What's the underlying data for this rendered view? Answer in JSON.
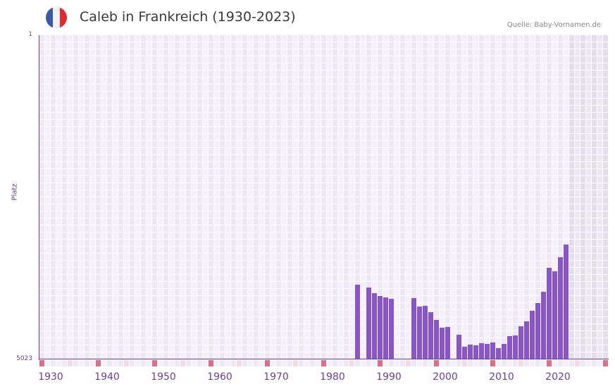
{
  "header": {
    "title": "Caleb in Frankreich (1930-2023)",
    "source": "Quelle: Baby-Vornamen.de",
    "flag": {
      "country": "France",
      "colors": [
        "#3a5aa8",
        "#f2f2f4",
        "#e42a2f"
      ]
    }
  },
  "colors": {
    "bar": "#8b55c7",
    "axis": "#6b3fa0",
    "grid_a": "#ece8f7",
    "grid_b": "#f3f0fb",
    "future_a": "#e3dff0",
    "future_b": "#ebe7f4",
    "decade_marker": "#e07080",
    "half_decade_marker": "#f5dbe3"
  },
  "chart_data": {
    "type": "bar",
    "title": "Caleb in Frankreich (1930-2023)",
    "xlabel": "",
    "ylabel": "Platz",
    "y_inverted": true,
    "ylim": [
      1,
      5023
    ],
    "y_ticks": [
      "1",
      "5023"
    ],
    "x_range": [
      1930,
      2030
    ],
    "x_tick_labels": [
      "1930",
      "1940",
      "1950",
      "1960",
      "1970",
      "1980",
      "1990",
      "2000",
      "2010",
      "2020"
    ],
    "grid": true,
    "legend": null,
    "future_shaded_from": 2024,
    "categories": [
      1986,
      1988,
      1989,
      1990,
      1991,
      1992,
      1996,
      1997,
      1998,
      1999,
      2000,
      2001,
      2002,
      2004,
      2005,
      2006,
      2007,
      2008,
      2009,
      2010,
      2011,
      2012,
      2013,
      2014,
      2015,
      2016,
      2017,
      2018,
      2019,
      2020,
      2021,
      2022,
      2023
    ],
    "values": [
      3866,
      3908,
      3996,
      4040,
      4061,
      4083,
      4072,
      4203,
      4192,
      4291,
      4411,
      4531,
      4520,
      4640,
      4826,
      4793,
      4804,
      4771,
      4782,
      4760,
      4848,
      4782,
      4662,
      4651,
      4509,
      4433,
      4269,
      4149,
      3975,
      3604,
      3658,
      3440,
      3243
    ]
  }
}
